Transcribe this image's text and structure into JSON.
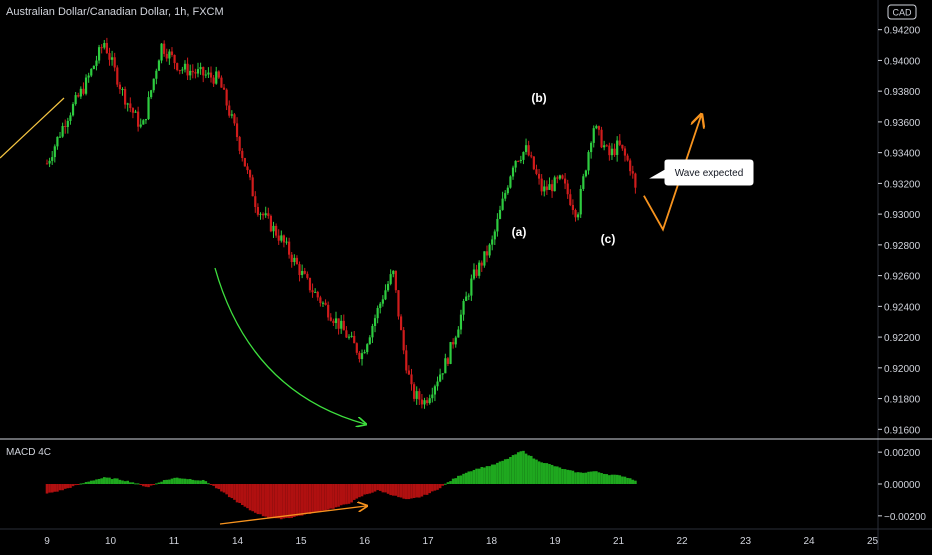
{
  "header": {
    "title": "Australian Dollar/Canadian Dollar, 1h, FXCM",
    "currency_badge": "CAD"
  },
  "colors": {
    "background": "#000000",
    "up": "#2ecc40",
    "down": "#d01c1c",
    "macd_up": "#1fa81f",
    "macd_down": "#b01010",
    "text": "#d1d4dc",
    "trendline": "#f5c542",
    "curve_arrow": "#3ee03e",
    "projection": "#f7931e",
    "divergence": "#f7931e"
  },
  "annotations": {
    "wave_a": "(a)",
    "wave_b": "(b)",
    "wave_c": "(c)",
    "callout": "Wave expected"
  },
  "indicator": {
    "title": "MACD 4C"
  },
  "chart_data": [
    {
      "type": "candlestick",
      "title": "Australian Dollar/Canadian Dollar, 1h, FXCM",
      "ylim": [
        0.9155,
        0.9425
      ],
      "y_ticks": [
        "0.94200",
        "0.94000",
        "0.93800",
        "0.93600",
        "0.93400",
        "0.93200",
        "0.93000",
        "0.92800",
        "0.92600",
        "0.92400",
        "0.92200",
        "0.92000",
        "0.91800",
        "0.91600"
      ],
      "x_ticks": [
        "9",
        "10",
        "11",
        "14",
        "15",
        "16",
        "17",
        "18",
        "19",
        "21",
        "22",
        "23",
        "24",
        "25"
      ],
      "path": [
        {
          "x": 0.0,
          "y": 0.9333
        },
        {
          "x": 0.3,
          "y": 0.9362
        },
        {
          "x": 0.6,
          "y": 0.9384
        },
        {
          "x": 0.9,
          "y": 0.9412
        },
        {
          "x": 1.2,
          "y": 0.9378
        },
        {
          "x": 1.5,
          "y": 0.9355
        },
        {
          "x": 1.8,
          "y": 0.941
        },
        {
          "x": 2.1,
          "y": 0.9395
        },
        {
          "x": 2.7,
          "y": 0.9388
        },
        {
          "x": 3.0,
          "y": 0.935
        },
        {
          "x": 3.3,
          "y": 0.9305
        },
        {
          "x": 3.7,
          "y": 0.9283
        },
        {
          "x": 4.1,
          "y": 0.9255
        },
        {
          "x": 4.6,
          "y": 0.9228
        },
        {
          "x": 4.95,
          "y": 0.9208
        },
        {
          "x": 5.3,
          "y": 0.9248
        },
        {
          "x": 5.45,
          "y": 0.9262
        },
        {
          "x": 5.6,
          "y": 0.9215
        },
        {
          "x": 5.75,
          "y": 0.9183
        },
        {
          "x": 5.95,
          "y": 0.9178
        },
        {
          "x": 6.3,
          "y": 0.9205
        },
        {
          "x": 6.7,
          "y": 0.9258
        },
        {
          "x": 7.0,
          "y": 0.928
        },
        {
          "x": 7.35,
          "y": 0.9335
        },
        {
          "x": 7.55,
          "y": 0.9342
        },
        {
          "x": 7.8,
          "y": 0.9315
        },
        {
          "x": 8.1,
          "y": 0.9322
        },
        {
          "x": 8.35,
          "y": 0.93
        },
        {
          "x": 8.6,
          "y": 0.9358
        },
        {
          "x": 8.85,
          "y": 0.9338
        },
        {
          "x": 9.0,
          "y": 0.9345
        },
        {
          "x": 9.2,
          "y": 0.933
        },
        {
          "x": 9.3,
          "y": 0.9308
        }
      ],
      "projection": [
        {
          "x": 9.4,
          "y": 0.9312
        },
        {
          "x": 9.7,
          "y": 0.929
        },
        {
          "x": 10.3,
          "y": 0.9364
        }
      ]
    },
    {
      "type": "bar",
      "title": "MACD 4C",
      "ylim": [
        -0.0027,
        0.0027
      ],
      "y_ticks": [
        "0.00200",
        "0.00000",
        "−0.00200"
      ],
      "series": [
        {
          "values": [
            -0.0006,
            -0.0004,
            -0.0001,
            0.0002,
            0.0004,
            0.0003,
            0.0001,
            -0.0002,
            0.0002,
            0.0004,
            0.0003,
            0.0002,
            -0.0004,
            -0.001,
            -0.0016,
            -0.002,
            -0.0022,
            -0.0021,
            -0.0019,
            -0.0017,
            -0.0015,
            -0.0012,
            -0.0007,
            -0.0004,
            -0.0007,
            -0.001,
            -0.0008,
            -0.0004,
            0.0002,
            0.0007,
            0.001,
            0.0012,
            0.0016,
            0.0021,
            0.0015,
            0.0012,
            0.0009,
            0.0007,
            0.0008,
            0.0006,
            0.0005,
            0.0002
          ]
        }
      ]
    }
  ]
}
